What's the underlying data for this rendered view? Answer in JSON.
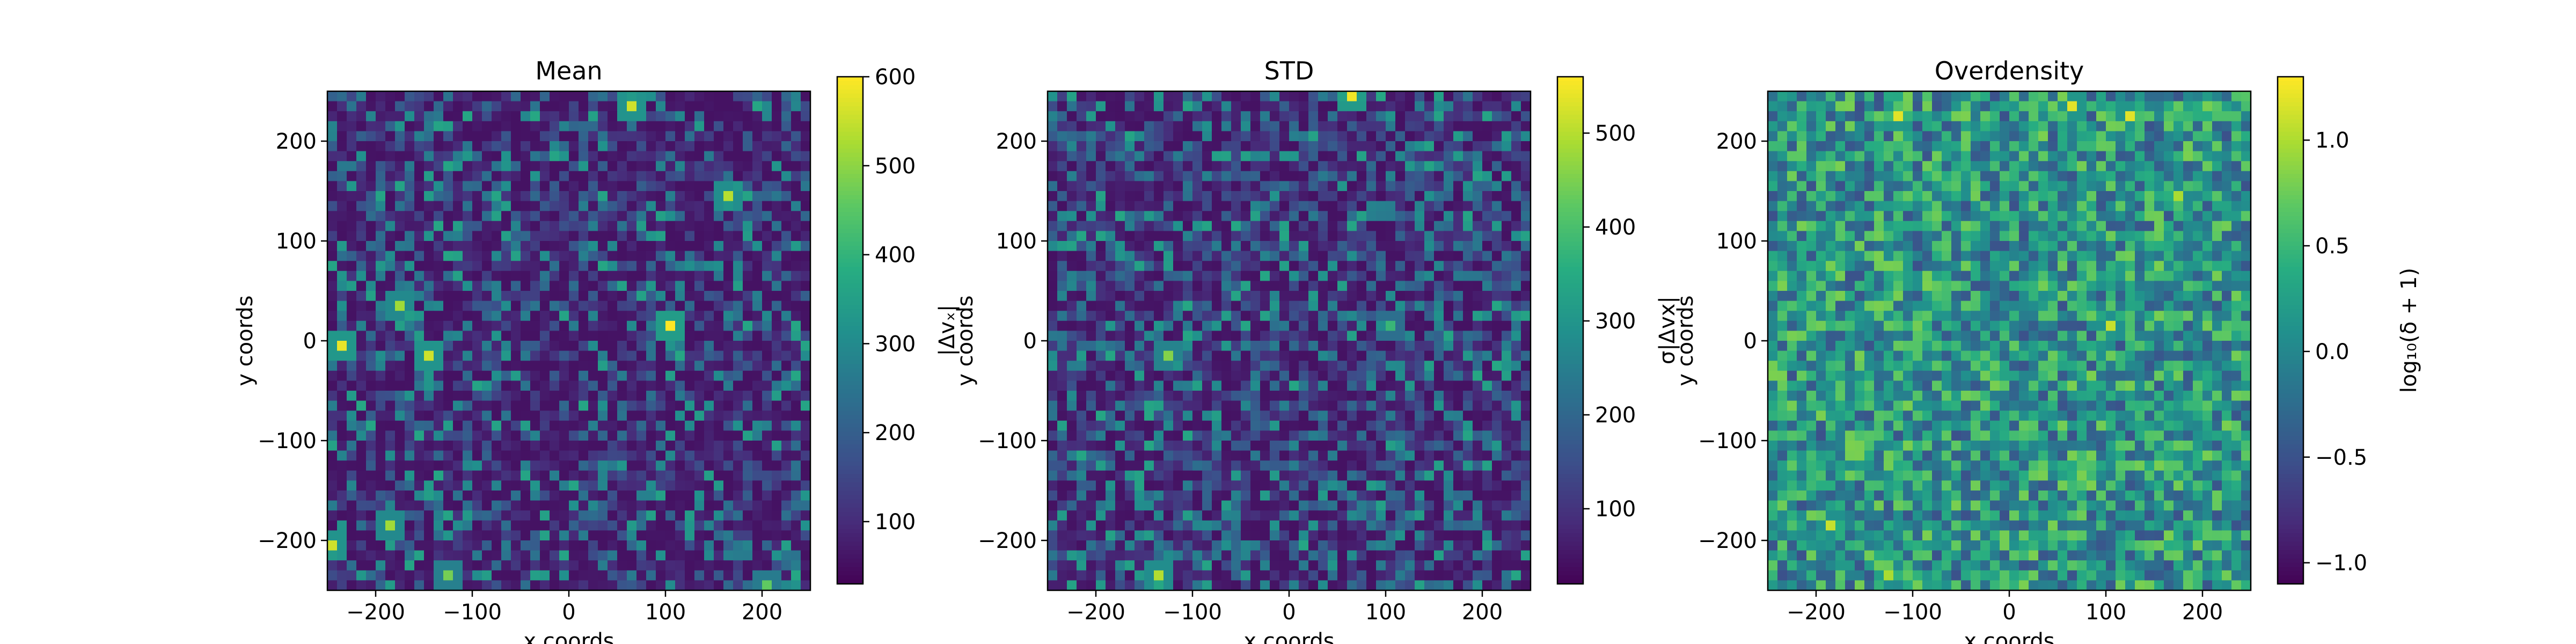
{
  "chart_data": [
    {
      "type": "heatmap",
      "title": "Mean",
      "xlabel": "x coords",
      "ylabel": "y coords",
      "xlim": [
        -250,
        250
      ],
      "ylim": [
        -250,
        250
      ],
      "xticks": [
        -200,
        -100,
        0,
        100,
        200
      ],
      "yticks": [
        -200,
        -100,
        0,
        100,
        200
      ],
      "xtick_labels": [
        "−200",
        "−100",
        "0",
        "100",
        "200"
      ],
      "ytick_labels": [
        "−200",
        "−100",
        "0",
        "100",
        "200"
      ],
      "grid": "50x50 bins",
      "colormap": "viridis",
      "colorbar": {
        "label": "|Δvₓ|",
        "range": [
          30,
          600
        ],
        "ticks": [
          100,
          200,
          300,
          400,
          500,
          600
        ],
        "tick_labels": [
          "100",
          "200",
          "300",
          "400",
          "500",
          "600"
        ]
      },
      "hotspots": [
        {
          "x": 105,
          "y": 15,
          "value": 600
        },
        {
          "x": -150,
          "y": -10,
          "value": 560
        },
        {
          "x": -175,
          "y": 40,
          "value": 520
        },
        {
          "x": 160,
          "y": 145,
          "value": 540
        },
        {
          "x": 60,
          "y": 240,
          "value": 560
        },
        {
          "x": -240,
          "y": -5,
          "value": 580
        },
        {
          "x": -245,
          "y": -200,
          "value": 560
        },
        {
          "x": -185,
          "y": -185,
          "value": 520
        },
        {
          "x": -130,
          "y": -235,
          "value": 480
        },
        {
          "x": 200,
          "y": -240,
          "value": 460
        }
      ]
    },
    {
      "type": "heatmap",
      "title": "STD",
      "xlabel": "x coords",
      "ylabel": "y coords",
      "xlim": [
        -250,
        250
      ],
      "ylim": [
        -250,
        250
      ],
      "xticks": [
        -200,
        -100,
        0,
        100,
        200
      ],
      "yticks": [
        -200,
        -100,
        0,
        100,
        200
      ],
      "xtick_labels": [
        "−200",
        "−100",
        "0",
        "100",
        "200"
      ],
      "ytick_labels": [
        "−200",
        "−100",
        "0",
        "100",
        "200"
      ],
      "grid": "50x50 bins",
      "colormap": "viridis",
      "colorbar": {
        "label": "σ|Δvx|",
        "range": [
          20,
          560
        ],
        "ticks": [
          100,
          200,
          300,
          400,
          500
        ],
        "tick_labels": [
          "100",
          "200",
          "300",
          "400",
          "500"
        ]
      },
      "hotspots": [
        {
          "x": 65,
          "y": 245,
          "value": 550
        },
        {
          "x": -135,
          "y": -235,
          "value": 500
        },
        {
          "x": -125,
          "y": -10,
          "value": 460
        },
        {
          "x": 105,
          "y": 15,
          "value": 380
        }
      ]
    },
    {
      "type": "heatmap",
      "title": "Overdensity",
      "xlabel": "x coords",
      "ylabel": "y coords",
      "xlim": [
        -250,
        250
      ],
      "ylim": [
        -250,
        250
      ],
      "xticks": [
        -200,
        -100,
        0,
        100,
        200
      ],
      "yticks": [
        -200,
        -100,
        0,
        100,
        200
      ],
      "xtick_labels": [
        "−200",
        "−100",
        "0",
        "100",
        "200"
      ],
      "ytick_labels": [
        "−200",
        "−100",
        "0",
        "100",
        "200"
      ],
      "grid": "50x50 bins",
      "colormap": "viridis",
      "colorbar": {
        "label": "log₁₀(δ + 1)",
        "range": [
          -1.1,
          1.3
        ],
        "ticks": [
          -1.0,
          -0.5,
          0.0,
          0.5,
          1.0
        ],
        "tick_labels": [
          "−1.0",
          "−0.5",
          "0.0",
          "0.5",
          "1.0"
        ]
      },
      "hotspots": [
        {
          "x": -115,
          "y": 225,
          "value": 1.2
        },
        {
          "x": 60,
          "y": 240,
          "value": 1.2
        },
        {
          "x": 120,
          "y": 225,
          "value": 1.2
        },
        {
          "x": -185,
          "y": -185,
          "value": 1.1
        },
        {
          "x": 105,
          "y": 15,
          "value": 1.1
        },
        {
          "x": -130,
          "y": -230,
          "value": 1.0
        },
        {
          "x": 175,
          "y": 145,
          "value": 1.0
        }
      ]
    }
  ]
}
